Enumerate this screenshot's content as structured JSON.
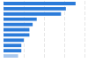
{
  "chart_data": {
    "type": "bar",
    "orientation": "horizontal",
    "categories": [
      null,
      null,
      null,
      null,
      null,
      null,
      null,
      null,
      null,
      null,
      null
    ],
    "values": [
      89,
      77,
      71,
      41,
      36,
      32,
      32,
      25,
      22,
      22,
      18
    ],
    "colors": [
      "#2b7bd9",
      "#2b7bd9",
      "#2b7bd9",
      "#2b7bd9",
      "#2b7bd9",
      "#2b7bd9",
      "#2b7bd9",
      "#2b7bd9",
      "#2b7bd9",
      "#2b7bd9",
      "#a9c8ee"
    ],
    "xlim": [
      0,
      100
    ],
    "xticks": [
      0,
      25,
      50,
      75,
      100
    ],
    "grid": true,
    "tick_labels": false
  }
}
